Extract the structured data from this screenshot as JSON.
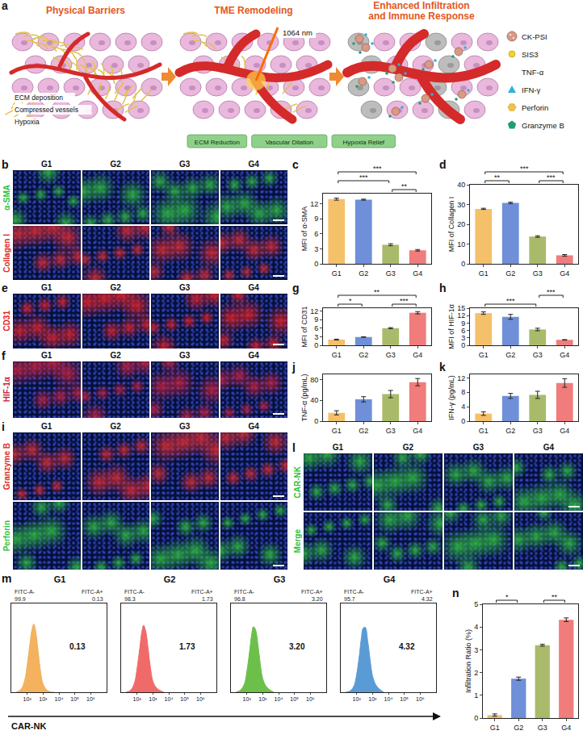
{
  "schematic": {
    "panel": "a",
    "titles": [
      "Physical Barriers",
      "TME Remodeling",
      "Enhanced Infiltration and Immune Response"
    ],
    "barrier_labels": [
      "ECM deposition",
      "Compressed vessels",
      "Hypoxia"
    ],
    "laser_label": "1064 nm",
    "effects": [
      "ECM Reduction",
      "Vascular Dilation",
      "Hypoxia Relief"
    ],
    "legend_items": [
      "CK-PSI",
      "SIS3",
      "TNF-α",
      "IFN-γ",
      "Perforin",
      "Granzyme B"
    ]
  },
  "image_panels": [
    {
      "panel": "b",
      "columns": [
        "G1",
        "G2",
        "G3",
        "G4"
      ],
      "rows": [
        {
          "label": "α-SMA",
          "color": "#2fbf3a"
        },
        {
          "label": "Collagen I",
          "color": "#e02a2a"
        }
      ]
    },
    {
      "panel": "e",
      "columns": [
        "G1",
        "G2",
        "G3",
        "G4"
      ],
      "rows": [
        {
          "label": "CD31",
          "color": "#e52020"
        }
      ]
    },
    {
      "panel": "f",
      "columns": [
        "G1",
        "G2",
        "G3",
        "G4"
      ],
      "rows": [
        {
          "label": "HIF-1α",
          "color": "#c8203a"
        }
      ]
    },
    {
      "panel": "i",
      "columns": [
        "G1",
        "G2",
        "G3",
        "G4"
      ],
      "rows": [
        {
          "label": "Granzyme B",
          "color": "#e02a2a"
        },
        {
          "label": "Perforin",
          "color": "#2fbf3a"
        }
      ]
    },
    {
      "panel": "l",
      "columns": [
        "G1",
        "G2",
        "G3",
        "G4"
      ],
      "rows": [
        {
          "label": "CAR-NK",
          "color": "#2fbf3a"
        },
        {
          "label": "Merge",
          "color": "#2fbf3a"
        }
      ]
    }
  ],
  "chart_data": [
    {
      "panel": "c",
      "type": "bar",
      "categories": [
        "G1",
        "G2",
        "G3",
        "G4"
      ],
      "values": [
        12.9,
        12.8,
        3.8,
        2.7
      ],
      "errors": [
        0.2,
        0.1,
        0.2,
        0.15
      ],
      "colors": [
        "#f5c06a",
        "#6f8fd8",
        "#a9bb6b",
        "#f07c7c"
      ],
      "y_label": "MFI of α-SMA",
      "ylim": [
        0,
        14
      ],
      "yticks": [
        0,
        3,
        6,
        9,
        12
      ],
      "grid": false,
      "significance": [
        {
          "pair": [
            "G3",
            "G4"
          ],
          "label": "**"
        },
        {
          "pair": [
            "G1",
            "G3"
          ],
          "label": "***"
        },
        {
          "pair": [
            "G1",
            "G4"
          ],
          "label": "***"
        }
      ]
    },
    {
      "panel": "d",
      "type": "bar",
      "categories": [
        "G1",
        "G2",
        "G3",
        "G4"
      ],
      "values": [
        27.8,
        30.8,
        13.8,
        4.3
      ],
      "errors": [
        0.3,
        0.4,
        0.4,
        0.4
      ],
      "colors": [
        "#f5c06a",
        "#6f8fd8",
        "#a9bb6b",
        "#f07c7c"
      ],
      "y_label": "MFI of Collagen I",
      "ylim": [
        0,
        40
      ],
      "yticks": [
        0,
        10,
        20,
        30,
        40
      ],
      "grid": false,
      "significance": [
        {
          "pair": [
            "G1",
            "G2"
          ],
          "label": "**"
        },
        {
          "pair": [
            "G3",
            "G4"
          ],
          "label": "***"
        },
        {
          "pair": [
            "G1",
            "G4"
          ],
          "label": "***"
        }
      ]
    },
    {
      "panel": "g",
      "type": "bar",
      "categories": [
        "G1",
        "G2",
        "G3",
        "G4"
      ],
      "values": [
        2.0,
        2.9,
        6.0,
        11.4
      ],
      "errors": [
        0.15,
        0.1,
        0.2,
        0.4
      ],
      "colors": [
        "#f5c06a",
        "#6f8fd8",
        "#a9bb6b",
        "#f07c7c"
      ],
      "y_label": "MFI of CD31",
      "ylim": [
        0,
        13
      ],
      "yticks": [
        0,
        3,
        6,
        9,
        12
      ],
      "grid": false,
      "significance": [
        {
          "pair": [
            "G1",
            "G2"
          ],
          "label": "*"
        },
        {
          "pair": [
            "G3",
            "G4"
          ],
          "label": "***"
        },
        {
          "pair": [
            "G1",
            "G4"
          ],
          "label": "**"
        }
      ]
    },
    {
      "panel": "h",
      "type": "bar",
      "categories": [
        "G1",
        "G2",
        "G3",
        "G4"
      ],
      "values": [
        13.0,
        11.5,
        6.4,
        2.2
      ],
      "errors": [
        0.5,
        1.0,
        0.5,
        0.1
      ],
      "colors": [
        "#f5c06a",
        "#6f8fd8",
        "#a9bb6b",
        "#f07c7c"
      ],
      "y_label": "MFI of HIF-1α",
      "ylim": [
        0,
        15
      ],
      "yticks": [
        0,
        3,
        6,
        9,
        12,
        15
      ],
      "grid": false,
      "significance": [
        {
          "pair": [
            "G1",
            "G3"
          ],
          "label": "***"
        },
        {
          "pair": [
            "G3",
            "G4"
          ],
          "label": "***"
        }
      ]
    },
    {
      "panel": "j",
      "type": "bar",
      "categories": [
        "G1",
        "G2",
        "G3",
        "G4"
      ],
      "values": [
        16,
        42,
        52,
        75
      ],
      "errors": [
        4,
        5,
        7,
        7
      ],
      "colors": [
        "#f5c06a",
        "#6f8fd8",
        "#a9bb6b",
        "#f07c7c"
      ],
      "y_label": "TNF-α (pg/mL)",
      "ylim": [
        0,
        90
      ],
      "yticks": [
        0,
        40,
        80
      ],
      "grid": false
    },
    {
      "panel": "k",
      "type": "bar",
      "categories": [
        "G1",
        "G2",
        "G3",
        "G4"
      ],
      "values": [
        2.1,
        7.0,
        7.3,
        10.6
      ],
      "errors": [
        0.5,
        0.7,
        1.0,
        1.2
      ],
      "colors": [
        "#f5c06a",
        "#6f8fd8",
        "#a9bb6b",
        "#f07c7c"
      ],
      "y_label": "IFN-γ (pg/mL)",
      "ylim": [
        0,
        13
      ],
      "yticks": [
        0,
        4,
        8,
        12
      ],
      "grid": false
    },
    {
      "panel": "m",
      "type": "line",
      "x_label": "CAR-NK",
      "log": "x",
      "xlim": [
        10,
        10000000
      ],
      "xticks": [
        {
          "value": 100,
          "label": "10²"
        },
        {
          "value": 1000,
          "label": "10³"
        },
        {
          "value": 10000,
          "label": "10⁴"
        },
        {
          "value": 100000,
          "label": "10⁵"
        },
        {
          "value": 1000000,
          "label": "10⁶"
        }
      ],
      "ylim": [
        0,
        130
      ],
      "tick_labels": "x",
      "grid": false,
      "series": [
        {
          "name": "G1",
          "color": "#f4b25e",
          "x": [
            20,
            40,
            70,
            100,
            150,
            200,
            260,
            350,
            500,
            700,
            1000,
            1600,
            2600,
            5000
          ],
          "values": [
            0,
            4,
            18,
            40,
            72,
            92,
            100,
            88,
            58,
            30,
            12,
            4,
            1,
            0
          ],
          "gate": {
            "from": 2000,
            "to": 10000000,
            "level": 55
          },
          "neg_label": "FITC-A-",
          "neg_pct": 99.9,
          "pos_label": "FITC-A+",
          "pos_pct": 0.13
        },
        {
          "name": "G2",
          "color": "#f06a6a",
          "x": [
            20,
            40,
            70,
            100,
            150,
            200,
            260,
            350,
            500,
            700,
            1000,
            1600,
            2600,
            5000
          ],
          "values": [
            0,
            3,
            14,
            34,
            65,
            88,
            98,
            90,
            64,
            36,
            16,
            7,
            3,
            0
          ],
          "gate": {
            "from": 2000,
            "to": 10000000,
            "level": 55
          },
          "neg_label": "FITC-A-",
          "neg_pct": 98.3,
          "pos_label": "FITC-A+",
          "pos_pct": 1.73
        },
        {
          "name": "G3",
          "color": "#6cc04a",
          "x": [
            20,
            40,
            70,
            100,
            150,
            200,
            260,
            350,
            500,
            700,
            1000,
            1600,
            2600,
            5000
          ],
          "values": [
            0,
            3,
            12,
            30,
            60,
            84,
            96,
            92,
            70,
            42,
            20,
            9,
            4,
            0
          ],
          "gate": {
            "from": 2000,
            "to": 10000000,
            "level": 55
          },
          "neg_label": "FITC-A-",
          "neg_pct": 96.8,
          "pos_label": "FITC-A+",
          "pos_pct": {
            "value": 3.2,
            "label": "3.20"
          }
        },
        {
          "name": "G4",
          "color": "#5b9bd5",
          "x": [
            20,
            40,
            70,
            100,
            150,
            200,
            260,
            350,
            500,
            700,
            1000,
            1600,
            2600,
            5000
          ],
          "values": [
            0,
            2,
            10,
            26,
            55,
            80,
            94,
            95,
            75,
            48,
            24,
            11,
            5,
            0
          ],
          "gate": {
            "from": 2000,
            "to": 10000000,
            "level": 55
          },
          "neg_label": "FITC-A-",
          "neg_pct": 95.7,
          "pos_label": "FITC-A+",
          "pos_pct": 4.32
        }
      ]
    },
    {
      "panel": "n",
      "type": "bar",
      "categories": [
        "G1",
        "G2",
        "G3",
        "G4"
      ],
      "values": [
        0.13,
        1.73,
        3.2,
        4.32
      ],
      "errors": [
        0.05,
        0.07,
        0.04,
        0.08
      ],
      "colors": [
        "#f5c06a",
        "#6f8fd8",
        "#a9bb6b",
        "#f07c7c"
      ],
      "y_label": "Infiltration Ratio (%)",
      "ylim": [
        0,
        5
      ],
      "yticks": [
        0,
        1,
        2,
        3,
        4,
        5
      ],
      "grid": false,
      "significance": [
        {
          "pair": [
            "G1",
            "G2"
          ],
          "label": "*"
        },
        {
          "pair": [
            "G3",
            "G4"
          ],
          "label": "**"
        }
      ]
    }
  ]
}
